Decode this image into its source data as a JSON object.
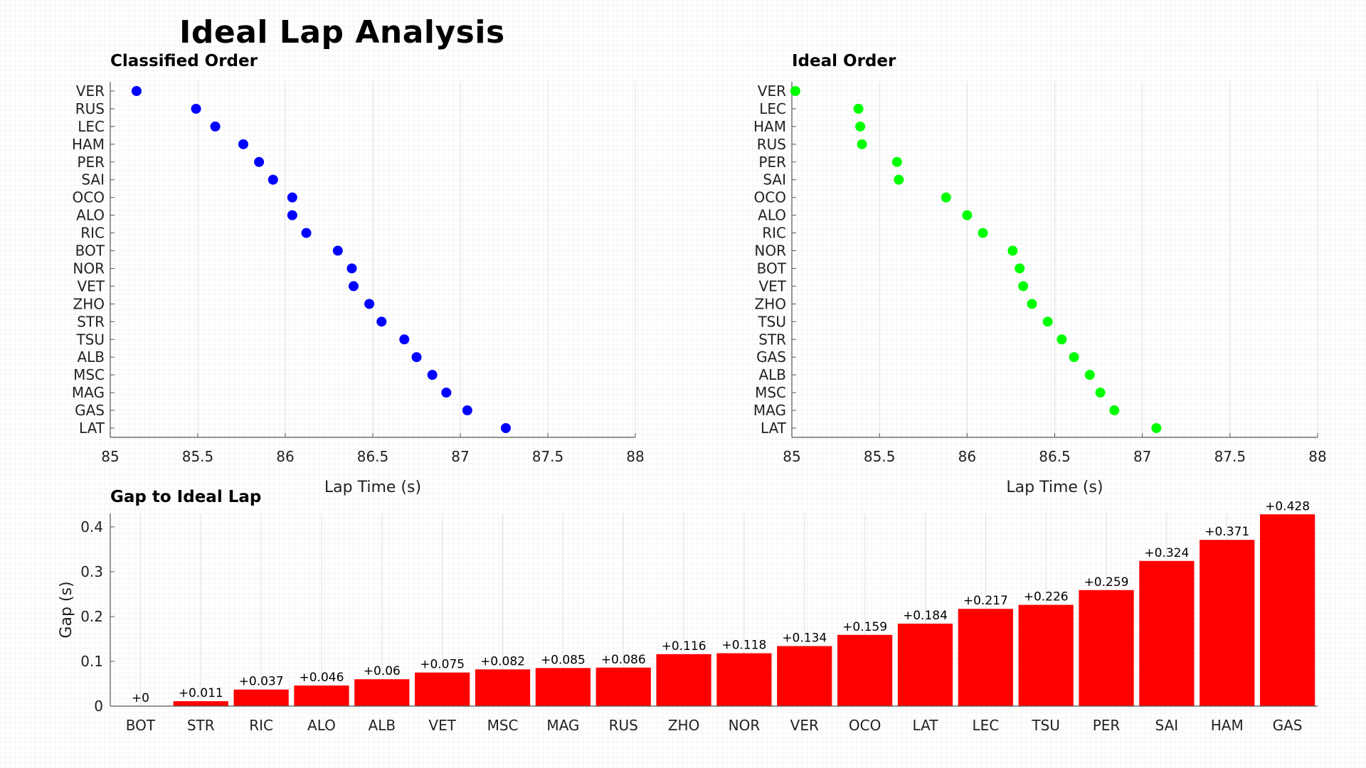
{
  "title": "Ideal Lap Analysis",
  "chart_data": [
    {
      "type": "scatter",
      "title": "Classified Order",
      "xlabel": "Lap Time (s)",
      "ylabel": "",
      "xlim": [
        85,
        88
      ],
      "xticks": [
        "85",
        "85.5",
        "86",
        "86.5",
        "87",
        "87.5",
        "88"
      ],
      "color": "#0000ff",
      "categories": [
        "VER",
        "RUS",
        "LEC",
        "HAM",
        "PER",
        "SAI",
        "OCO",
        "ALO",
        "RIC",
        "BOT",
        "NOR",
        "VET",
        "ZHO",
        "STR",
        "TSU",
        "ALB",
        "MSC",
        "MAG",
        "GAS",
        "LAT"
      ],
      "values": [
        85.15,
        85.49,
        85.6,
        85.76,
        85.85,
        85.93,
        86.04,
        86.04,
        86.12,
        86.3,
        86.38,
        86.39,
        86.48,
        86.55,
        86.68,
        86.75,
        86.84,
        86.92,
        87.04,
        87.26
      ]
    },
    {
      "type": "scatter",
      "title": "Ideal Order",
      "xlabel": "Lap Time (s)",
      "ylabel": "",
      "xlim": [
        85,
        88
      ],
      "xticks": [
        "85",
        "85.5",
        "86",
        "86.5",
        "87",
        "87.5",
        "88"
      ],
      "color": "#00ff00",
      "categories": [
        "VER",
        "LEC",
        "HAM",
        "RUS",
        "PER",
        "SAI",
        "OCO",
        "ALO",
        "RIC",
        "NOR",
        "BOT",
        "VET",
        "ZHO",
        "TSU",
        "STR",
        "GAS",
        "ALB",
        "MSC",
        "MAG",
        "LAT"
      ],
      "values": [
        85.02,
        85.38,
        85.39,
        85.4,
        85.6,
        85.61,
        85.88,
        86.0,
        86.09,
        86.26,
        86.3,
        86.32,
        86.37,
        86.46,
        86.54,
        86.61,
        86.7,
        86.76,
        86.84,
        87.08
      ]
    },
    {
      "type": "bar",
      "title": "Gap to Ideal Lap",
      "xlabel": "",
      "ylabel": "Gap (s)",
      "ylim": [
        0,
        0.43
      ],
      "yticks": [
        "0",
        "0.1",
        "0.2",
        "0.3",
        "0.4"
      ],
      "color": "#ff0000",
      "categories": [
        "BOT",
        "STR",
        "RIC",
        "ALO",
        "ALB",
        "VET",
        "MSC",
        "MAG",
        "RUS",
        "ZHO",
        "NOR",
        "VER",
        "OCO",
        "LAT",
        "LEC",
        "TSU",
        "PER",
        "SAI",
        "HAM",
        "GAS"
      ],
      "values": [
        0,
        0.011,
        0.037,
        0.046,
        0.06,
        0.075,
        0.082,
        0.085,
        0.086,
        0.116,
        0.118,
        0.134,
        0.159,
        0.184,
        0.217,
        0.226,
        0.259,
        0.324,
        0.371,
        0.428
      ],
      "data_labels": [
        "+0",
        "+0.011",
        "+0.037",
        "+0.046",
        "+0.06",
        "+0.075",
        "+0.082",
        "+0.085",
        "+0.086",
        "+0.116",
        "+0.118",
        "+0.134",
        "+0.159",
        "+0.184",
        "+0.217",
        "+0.226",
        "+0.259",
        "+0.324",
        "+0.371",
        "+0.428"
      ]
    }
  ]
}
